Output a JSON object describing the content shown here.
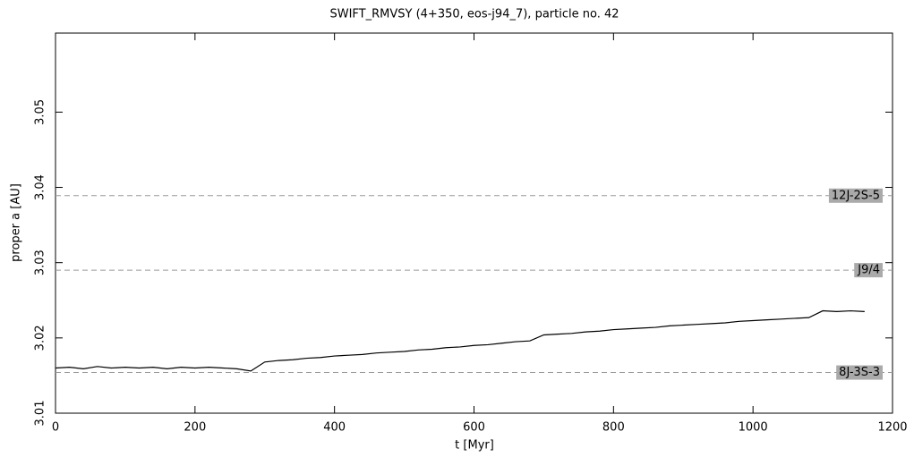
{
  "chart_data": {
    "type": "line",
    "title": "SWIFT_RMVSY (4+350, eos-j94_7), particle no. 42",
    "x_label": "t [Myr]",
    "y_label": "proper a [AU]",
    "x": [
      0,
      20,
      40,
      60,
      80,
      100,
      120,
      140,
      160,
      180,
      200,
      220,
      240,
      260,
      280,
      300,
      320,
      340,
      360,
      380,
      400,
      420,
      440,
      460,
      480,
      500,
      520,
      540,
      560,
      580,
      600,
      620,
      640,
      660,
      680,
      700,
      720,
      740,
      760,
      780,
      800,
      820,
      840,
      860,
      880,
      900,
      920,
      940,
      960,
      980,
      1000,
      1020,
      1040,
      1060,
      1080,
      1100,
      1120,
      1140,
      1160
    ],
    "series": [
      {
        "color": "#000000",
        "values": [
          3.016,
          3.0161,
          3.0159,
          3.0162,
          3.016,
          3.0161,
          3.016,
          3.0161,
          3.0159,
          3.0161,
          3.016,
          3.0161,
          3.016,
          3.0159,
          3.0156,
          3.0168,
          3.017,
          3.0171,
          3.0173,
          3.0174,
          3.0176,
          3.0177,
          3.0178,
          3.018,
          3.0181,
          3.0182,
          3.0184,
          3.0185,
          3.0187,
          3.0188,
          3.019,
          3.0191,
          3.0193,
          3.0195,
          3.0196,
          3.0204,
          3.0205,
          3.0206,
          3.0208,
          3.0209,
          3.0211,
          3.0212,
          3.0213,
          3.0214,
          3.0216,
          3.0217,
          3.0218,
          3.0219,
          3.022,
          3.0222,
          3.0223,
          3.0224,
          3.0225,
          3.0226,
          3.0227,
          3.0236,
          3.0235,
          3.0236,
          3.0235
        ]
      }
    ],
    "resonances": [
      {
        "label": "12J-2S-5",
        "value": 3.0389
      },
      {
        "label": "J9/4",
        "value": 3.029
      },
      {
        "label": "8J-3S-3",
        "value": 3.0154
      }
    ],
    "xlim": [
      0,
      1200
    ],
    "xticks": [
      0,
      200,
      400,
      600,
      800,
      1000,
      1200
    ],
    "ylim": [
      3.01,
      3.0605
    ],
    "yticks": [
      3.01,
      3.02,
      3.03,
      3.04,
      3.05
    ]
  }
}
